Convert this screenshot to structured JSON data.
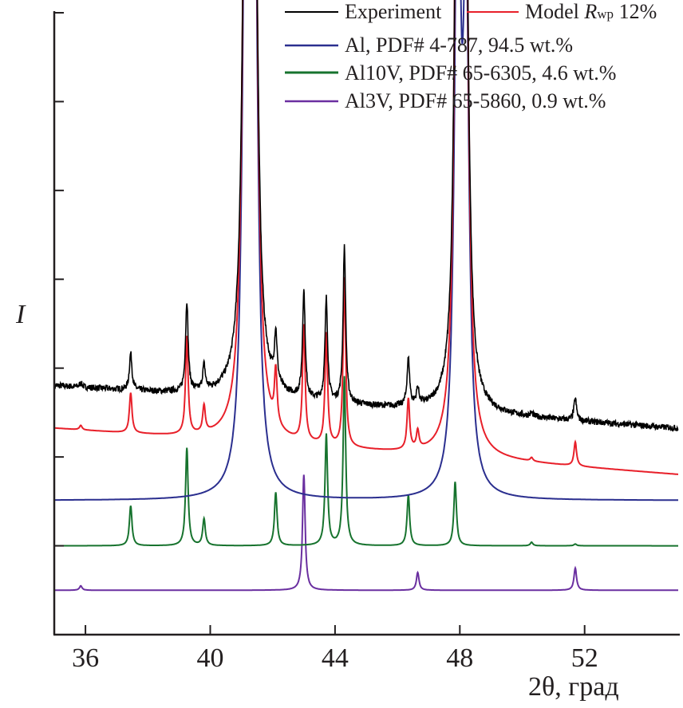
{
  "chart_data": {
    "type": "line",
    "title": "",
    "xlabel": "2θ, град",
    "ylabel": "I",
    "xlim": [
      35,
      55
    ],
    "ylim": [
      0,
      7
    ],
    "xticks": [
      36,
      40,
      44,
      48,
      52
    ],
    "yticks": [
      1,
      2,
      3,
      4,
      5,
      6,
      7
    ],
    "grid": false,
    "legend_placement": "top-right",
    "legend": {
      "experiment": "Experiment",
      "model_prefix": "Model ",
      "model_r": "R",
      "model_sub": "wp",
      "model_suffix": " 12%",
      "al": "Al, PDF# 4-787, 94.5 wt.%",
      "al10v": "Al10V, PDF# 65-6305, 4.6 wt.%",
      "al3v": "Al3V, PDF# 65-5860, 0.9 wt.%"
    },
    "series": [
      {
        "name": "Experiment",
        "color": "#000000",
        "baseline": [
          2.8,
          2.32
        ],
        "noise": 0.035,
        "peak_scale": 0.92,
        "components": [
          "Al",
          "Al10V",
          "Al3V"
        ]
      },
      {
        "name": "Model",
        "color": "#e8202a",
        "baseline": [
          2.32,
          1.8
        ],
        "peak_scale": 1.0,
        "components": [
          "Al",
          "Al10V",
          "Al3V"
        ]
      },
      {
        "name": "Al",
        "color": "#2b2f8f",
        "baseline": [
          1.51,
          1.51
        ],
        "width": 0.11,
        "peaks": [
          [
            41.15,
            9.0
          ],
          [
            41.42,
            7.0
          ],
          [
            47.93,
            7.5
          ],
          [
            48.2,
            5.5
          ]
        ]
      },
      {
        "name": "Al10V",
        "color": "#17732e",
        "baseline": [
          1.0,
          1.0
        ],
        "width": 0.05,
        "peaks": [
          [
            37.45,
            0.45
          ],
          [
            39.25,
            1.1
          ],
          [
            39.8,
            0.3
          ],
          [
            42.1,
            0.6
          ],
          [
            43.72,
            1.25
          ],
          [
            44.3,
            1.9
          ],
          [
            46.35,
            0.57
          ],
          [
            47.85,
            0.72
          ],
          [
            50.3,
            0.04
          ],
          [
            51.7,
            0.02
          ]
        ]
      },
      {
        "name": "Al3V",
        "color": "#6a2fa0",
        "baseline": [
          0.5,
          0.5
        ],
        "width": 0.05,
        "peaks": [
          [
            35.85,
            0.05
          ],
          [
            43.0,
            1.3
          ],
          [
            46.65,
            0.2
          ],
          [
            51.7,
            0.25
          ]
        ]
      }
    ]
  }
}
